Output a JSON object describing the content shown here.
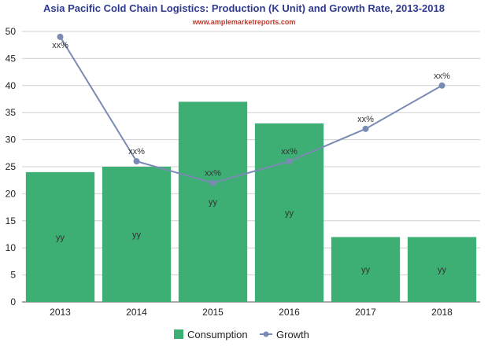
{
  "chart_data": {
    "type": "bar",
    "title": "Asia Pacific Cold Chain Logistics: Production (K Unit) and Growth Rate, 2013-2018",
    "subtitle": "www.amplemarketreports.com",
    "categories": [
      "2013",
      "2014",
      "2015",
      "2016",
      "2017",
      "2018"
    ],
    "ylim": [
      0,
      50
    ],
    "yticks": [
      0,
      5,
      10,
      15,
      20,
      25,
      30,
      35,
      40,
      45,
      50
    ],
    "grid": true,
    "legend_position": "bottom",
    "series": [
      {
        "name": "Consumption",
        "type": "bar",
        "color": "#3daf74",
        "values": [
          24,
          25,
          37,
          33,
          12,
          12
        ],
        "labels": [
          "yy",
          "yy",
          "yy",
          "yy",
          "yy",
          "yy"
        ]
      },
      {
        "name": "Growth",
        "type": "line",
        "color": "#7a8bb3",
        "values": [
          49,
          26,
          22,
          26,
          32,
          40
        ],
        "labels": [
          "xx%",
          "xx%",
          "xx%",
          "xx%",
          "xx%",
          "xx%"
        ]
      }
    ]
  }
}
